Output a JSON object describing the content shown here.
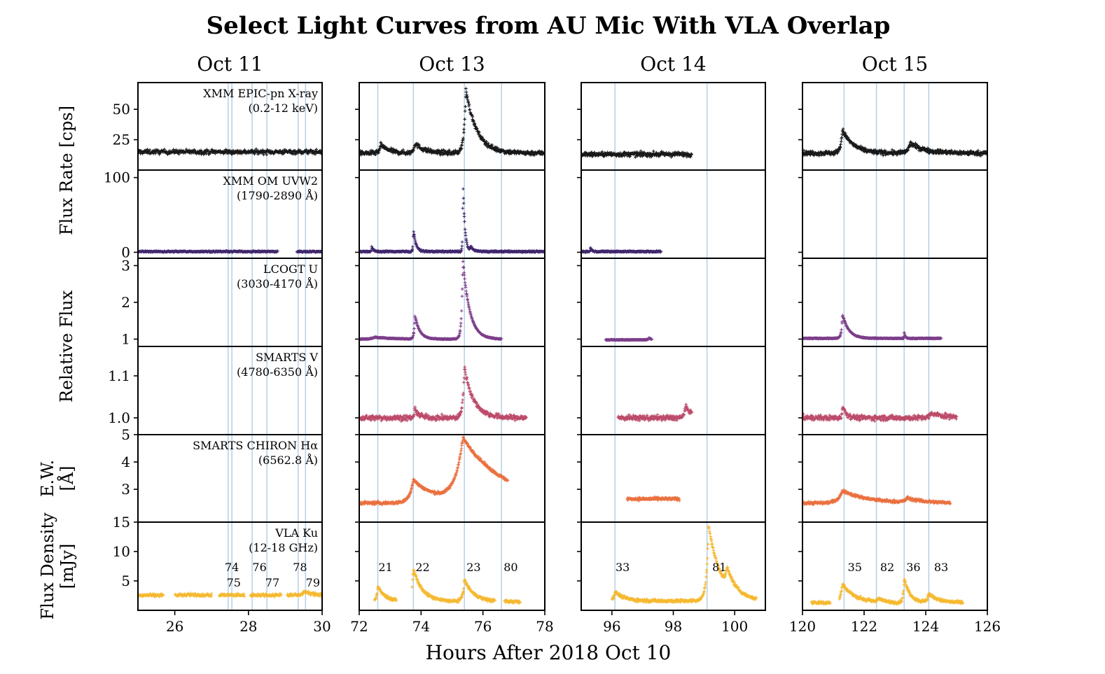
{
  "chart_data": {
    "type": "scatter",
    "title": "Select Light Curves from AU Mic With VLA Overlap",
    "xlabel": "Hours After 2018 Oct 10",
    "columns": [
      {
        "title": "Oct 11",
        "xlim": [
          25,
          30
        ],
        "xticks": [
          26,
          28,
          30
        ]
      },
      {
        "title": "Oct 13",
        "xlim": [
          72,
          78
        ],
        "xticks": [
          72,
          74,
          76,
          78
        ]
      },
      {
        "title": "Oct 14",
        "xlim": [
          95,
          101
        ],
        "xticks": [
          96,
          98,
          100
        ]
      },
      {
        "title": "Oct 15",
        "xlim": [
          120,
          126
        ],
        "xticks": [
          120,
          122,
          124,
          126
        ]
      }
    ],
    "row_axis_labels": [
      {
        "text": "Flux Rate [cps]",
        "rows": [
          0,
          1
        ]
      },
      {
        "text": "Relative Flux",
        "rows": [
          2,
          3
        ]
      },
      {
        "text": "E.W.",
        "text2": "[Å]",
        "rows": [
          4
        ]
      },
      {
        "text": "Flux Density",
        "text2": "[mJy]",
        "rows": [
          5
        ]
      }
    ],
    "rows": [
      {
        "label": "XMM EPIC-pn X-ray",
        "label2": "(0.2-12 keV)",
        "color": "#000000",
        "ylim": [
          0,
          72
        ],
        "yticks": [
          25,
          50
        ],
        "noise": 1.8,
        "scatter_pts": 0,
        "series": [
          {
            "col": 0,
            "x0": 25,
            "x1": 30,
            "base": 15,
            "gaps": [],
            "flares": []
          },
          {
            "col": 1,
            "x0": 72,
            "x1": 78,
            "base": 14,
            "gaps": [],
            "flares": [
              [
                72.7,
                7,
                0.25
              ],
              [
                73.8,
                8,
                0.3
              ],
              [
                75.45,
                52,
                0.35
              ]
            ]
          },
          {
            "col": 2,
            "x0": 95,
            "x1": 98.6,
            "base": 13,
            "gaps": [],
            "flares": []
          },
          {
            "col": 3,
            "x0": 120,
            "x1": 126,
            "base": 14,
            "gaps": [],
            "flares": [
              [
                121.3,
                19,
                0.35
              ],
              [
                123.5,
                8,
                0.45
              ]
            ]
          }
        ]
      },
      {
        "label": "XMM OM UVW2",
        "label2": "(1790-2890 Å)",
        "color": "#2c0f5e",
        "ylim": [
          -8,
          110
        ],
        "yticks": [
          0,
          100
        ],
        "noise": 0.8,
        "scatter_pts": 0,
        "series": [
          {
            "col": 0,
            "x0": 25,
            "x1": 30,
            "base": 1,
            "gaps": [
              [
                28.8,
                29.3
              ]
            ],
            "flares": []
          },
          {
            "col": 1,
            "x0": 72,
            "x1": 78,
            "base": 1,
            "gaps": [],
            "flares": [
              [
                72.4,
                7,
                0.05
              ],
              [
                73.75,
                30,
                0.08
              ],
              [
                75.35,
                100,
                0.06
              ],
              [
                75.6,
                6,
                0.1
              ]
            ]
          },
          {
            "col": 2,
            "x0": 95,
            "x1": 97.6,
            "base": 1,
            "gaps": [],
            "flares": [
              [
                95.3,
                5,
                0.05
              ]
            ]
          }
        ]
      },
      {
        "label": "LCOGT U",
        "label2": "(3030-4170 Å)",
        "color": "#6e2a7e",
        "ylim": [
          0.8,
          3.2
        ],
        "yticks": [
          1,
          2,
          3
        ],
        "noise": 0.01,
        "scatter_pts": 0,
        "series": [
          {
            "col": 1,
            "x0": 72,
            "x1": 76.6,
            "base": 1.0,
            "gaps": [],
            "flares": [
              [
                72.5,
                0.05,
                0.6
              ],
              [
                73.8,
                0.65,
                0.15
              ],
              [
                75.35,
                2.15,
                0.22
              ]
            ]
          },
          {
            "col": 2,
            "x0": 95.8,
            "x1": 97.3,
            "base": 0.98,
            "gaps": [],
            "flares": [
              [
                97.2,
                0.05,
                0.1
              ]
            ]
          },
          {
            "col": 3,
            "x0": 120,
            "x1": 124.5,
            "base": 1.02,
            "gaps": [],
            "flares": [
              [
                121.3,
                0.65,
                0.2
              ],
              [
                123.3,
                0.2,
                0.03
              ]
            ]
          }
        ]
      },
      {
        "label": "SMARTS V",
        "label2": "(4780-6350 Å)",
        "color": "#b5385a",
        "ylim": [
          0.96,
          1.17
        ],
        "yticks": [
          1.0,
          1.1
        ],
        "noise": 0.006,
        "scatter_pts": 0,
        "series": [
          {
            "col": 1,
            "x0": 72,
            "x1": 77.4,
            "base": 1.0,
            "gaps": [],
            "flares": [
              [
                73.8,
                0.02,
                0.15
              ],
              [
                75.4,
                0.12,
                0.3
              ]
            ]
          },
          {
            "col": 2,
            "x0": 96.2,
            "x1": 98.6,
            "base": 1.0,
            "gaps": [],
            "flares": [
              [
                98.4,
                0.025,
                0.3
              ]
            ]
          },
          {
            "col": 3,
            "x0": 120,
            "x1": 125.0,
            "base": 1.0,
            "gaps": [],
            "flares": [
              [
                121.3,
                0.03,
                0.12
              ],
              [
                124.2,
                0.01,
                0.5
              ]
            ]
          }
        ]
      },
      {
        "label": "SMARTS CHIRON Hα",
        "label2": "(6562.8 Å)",
        "color": "#e8622b",
        "ylim": [
          1.8,
          5.0
        ],
        "yticks": [
          3,
          4,
          5
        ],
        "noise": 0.05,
        "scatter_pts": 0,
        "series": [
          {
            "col": 1,
            "x0": 72,
            "x1": 76.8,
            "base": 2.5,
            "gaps": [],
            "flares": [
              [
                73.75,
                0.85,
                0.7
              ],
              [
                75.35,
                2.3,
                1.4
              ]
            ]
          },
          {
            "col": 2,
            "x0": 96.5,
            "x1": 98.2,
            "base": 2.65,
            "gaps": [],
            "flares": []
          },
          {
            "col": 3,
            "x0": 120,
            "x1": 124.8,
            "base": 2.5,
            "gaps": [],
            "flares": [
              [
                121.3,
                0.45,
                0.8
              ],
              [
                123.4,
                0.15,
                0.5
              ]
            ]
          }
        ]
      },
      {
        "label": "VLA Ku",
        "label2": "(12-18 GHz)",
        "color": "#f5b21b",
        "ylim": [
          0,
          15
        ],
        "yticks": [
          5,
          10,
          15
        ],
        "noise": 0.25,
        "scatter_pts": 0,
        "series": [
          {
            "col": 0,
            "x0": 25,
            "x1": 30,
            "base": 2.6,
            "gaps": [
              [
                25.7,
                26.0
              ],
              [
                27.0,
                27.2
              ],
              [
                27.9,
                28.05
              ],
              [
                28.9,
                29.05
              ]
            ],
            "flares": [
              [
                29.5,
                0.6,
                0.2
              ]
            ]
          },
          {
            "col": 1,
            "x0": 72.5,
            "x1": 77.2,
            "base": 1.5,
            "gaps": [
              [
                73.2,
                73.7
              ],
              [
                76.4,
                76.7
              ]
            ],
            "flares": [
              [
                72.6,
                2.5,
                0.25
              ],
              [
                73.75,
                5.5,
                0.3
              ],
              [
                75.4,
                3.7,
                0.3
              ]
            ]
          },
          {
            "col": 2,
            "x0": 96.0,
            "x1": 100.7,
            "base": 1.6,
            "gaps": [],
            "flares": [
              [
                96.1,
                1.6,
                0.3
              ],
              [
                99.15,
                12.8,
                0.4
              ],
              [
                99.75,
                3,
                0.3
              ]
            ]
          },
          {
            "col": 3,
            "x0": 120.3,
            "x1": 125.2,
            "base": 1.3,
            "gaps": [
              [
                120.9,
                121.2
              ]
            ],
            "flares": [
              [
                121.3,
                3.2,
                0.4
              ],
              [
                122.45,
                0.7,
                0.15
              ],
              [
                123.3,
                4,
                0.2
              ],
              [
                124.1,
                1.5,
                0.3
              ]
            ]
          }
        ]
      }
    ],
    "vlines": {
      "0": [
        27.45,
        27.55,
        28.1,
        28.5,
        29.35,
        29.55
      ],
      "1": [
        72.6,
        73.75,
        75.4,
        76.6
      ],
      "2": [
        96.1,
        99.1
      ],
      "3": [
        121.35,
        122.4,
        123.3,
        124.1
      ]
    },
    "flare_ids": [
      {
        "col": 0,
        "x": 27.55,
        "text": "74",
        "level": 1
      },
      {
        "col": 0,
        "x": 27.6,
        "text": "75",
        "level": 0
      },
      {
        "col": 0,
        "x": 28.3,
        "text": "76",
        "level": 1
      },
      {
        "col": 0,
        "x": 28.65,
        "text": "77",
        "level": 0
      },
      {
        "col": 0,
        "x": 29.4,
        "text": "78",
        "level": 1
      },
      {
        "col": 0,
        "x": 29.75,
        "text": "79",
        "level": 0
      },
      {
        "col": 1,
        "x": 72.85,
        "text": "21",
        "level": 1
      },
      {
        "col": 1,
        "x": 74.05,
        "text": "22",
        "level": 1
      },
      {
        "col": 1,
        "x": 75.7,
        "text": "23",
        "level": 1
      },
      {
        "col": 1,
        "x": 76.9,
        "text": "80",
        "level": 1
      },
      {
        "col": 2,
        "x": 96.35,
        "text": "33",
        "level": 1
      },
      {
        "col": 2,
        "x": 99.5,
        "text": "81",
        "level": 1
      },
      {
        "col": 3,
        "x": 121.7,
        "text": "35",
        "level": 1
      },
      {
        "col": 3,
        "x": 122.75,
        "text": "82",
        "level": 1
      },
      {
        "col": 3,
        "x": 123.6,
        "text": "36",
        "level": 1
      },
      {
        "col": 3,
        "x": 124.5,
        "text": "83",
        "level": 1
      }
    ]
  }
}
